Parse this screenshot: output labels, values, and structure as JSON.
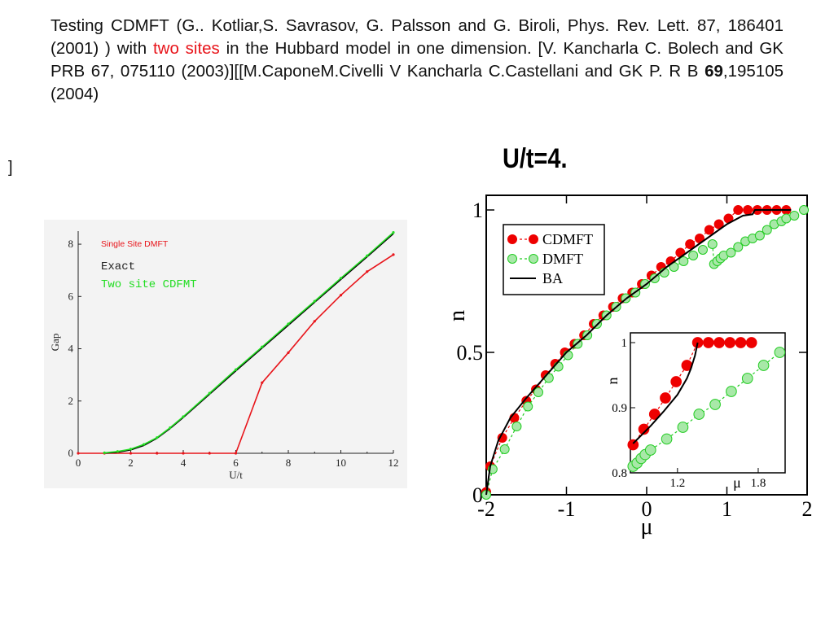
{
  "slide": {
    "text_before": "Testing    CDMFT (G.. Kotliar,S. Savrasov, G. Palsson and G. Biroli, Phys. Rev. Lett. 87, 186401 (2001) )   with ",
    "text_highlight": "two sites",
    "text_after": " in   the Hubbard model in one dimension. [V. Kancharla C. Bolech and GK   PRB 67, 075110 (2003)][[M.CaponeM.Civelli   V Kancharla C.Castellani and GK   P. R B ",
    "text_bold": "69",
    "text_end": ",195105 (2004)",
    "stray_bracket": "]",
    "right_title": "U/t=4.",
    "accent_color": "#e8151b"
  },
  "chart_data": [
    {
      "type": "line",
      "title": "",
      "xlabel": "U/t",
      "ylabel": "Gap",
      "xlim": [
        0,
        12
      ],
      "ylim": [
        0,
        8.5
      ],
      "x_ticks": [
        "0",
        "2",
        "4",
        "6",
        "8",
        "10",
        "12"
      ],
      "y_ticks": [
        "0",
        "2",
        "4",
        "6",
        "8"
      ],
      "legend": [
        "Single Site DMFT",
        "Exact",
        "Two site CDFMT"
      ],
      "legend_position": "top-left",
      "series": [
        {
          "name": "Single Site DMFT",
          "color": "#e8151b",
          "x": [
            0,
            1,
            2,
            3,
            4,
            5,
            6,
            7,
            8,
            9,
            10,
            11,
            12
          ],
          "y": [
            0,
            0,
            0,
            0,
            0,
            0,
            0,
            2.7,
            3.85,
            5.05,
            6.05,
            6.95,
            7.6
          ]
        },
        {
          "name": "Exact",
          "color": "#000000",
          "x": [
            1,
            1.5,
            2,
            2.5,
            3,
            3.5,
            4,
            5,
            6,
            7,
            8,
            9,
            10,
            11,
            12
          ],
          "y": [
            0.005,
            0.04,
            0.13,
            0.3,
            0.58,
            0.95,
            1.37,
            2.26,
            3.15,
            4.03,
            4.9,
            5.78,
            6.65,
            7.52,
            8.4
          ]
        },
        {
          "name": "Two site CDFMT",
          "color": "#22dd22",
          "x": [
            1,
            1.5,
            2,
            2.5,
            3,
            3.5,
            4,
            5,
            6,
            7,
            8,
            9,
            10,
            11,
            12
          ],
          "y": [
            0.02,
            0.07,
            0.16,
            0.34,
            0.6,
            0.98,
            1.4,
            2.3,
            3.2,
            4.07,
            4.95,
            5.82,
            6.7,
            7.56,
            8.45
          ]
        }
      ]
    },
    {
      "type": "line",
      "title": "U/t=4.",
      "xlabel": "μ",
      "ylabel": "n",
      "xlim": [
        -2,
        2
      ],
      "ylim": [
        0,
        1
      ],
      "x_ticks": [
        "-2",
        "-1",
        "0",
        "1",
        "2"
      ],
      "y_ticks": [
        "0",
        "0.5",
        "1"
      ],
      "legend": [
        "CDMFT",
        "DMFT",
        "BA"
      ],
      "legend_position": "top-left",
      "series": [
        {
          "name": "CDMFT",
          "color": "#ee0000",
          "x": [
            -2.0,
            -1.95,
            -1.8,
            -1.65,
            -1.5,
            -1.38,
            -1.26,
            -1.14,
            -1.02,
            -0.9,
            -0.78,
            -0.66,
            -0.54,
            -0.42,
            -0.3,
            -0.18,
            -0.06,
            0.06,
            0.18,
            0.3,
            0.42,
            0.54,
            0.66,
            0.78,
            0.9,
            1.02,
            1.14,
            1.26,
            1.38,
            1.5,
            1.62,
            1.74
          ],
          "y": [
            0.01,
            0.1,
            0.2,
            0.27,
            0.33,
            0.37,
            0.42,
            0.46,
            0.5,
            0.53,
            0.56,
            0.6,
            0.63,
            0.66,
            0.69,
            0.71,
            0.74,
            0.77,
            0.8,
            0.82,
            0.85,
            0.88,
            0.9,
            0.93,
            0.95,
            0.97,
            1.0,
            1.0,
            1.0,
            1.0,
            1.0,
            1.0
          ]
        },
        {
          "name": "DMFT",
          "color": "#22cc22",
          "x": [
            -2.0,
            -1.92,
            -1.77,
            -1.62,
            -1.48,
            -1.35,
            -1.22,
            -1.1,
            -0.98,
            -0.86,
            -0.74,
            -0.62,
            -0.5,
            -0.38,
            -0.26,
            -0.14,
            -0.02,
            0.1,
            0.22,
            0.34,
            0.46,
            0.58,
            0.7,
            0.82,
            0.84,
            0.88,
            0.92,
            0.96,
            1.05,
            1.14,
            1.23,
            1.32,
            1.41,
            1.5,
            1.59,
            1.68,
            1.74,
            1.84,
            1.96
          ],
          "y": [
            0.0,
            0.09,
            0.16,
            0.24,
            0.31,
            0.36,
            0.41,
            0.45,
            0.49,
            0.53,
            0.56,
            0.6,
            0.63,
            0.66,
            0.69,
            0.71,
            0.74,
            0.76,
            0.78,
            0.8,
            0.82,
            0.84,
            0.86,
            0.88,
            0.81,
            0.82,
            0.83,
            0.84,
            0.85,
            0.87,
            0.89,
            0.9,
            0.91,
            0.93,
            0.95,
            0.96,
            0.97,
            0.98,
            1.0
          ]
        },
        {
          "name": "BA",
          "color": "#000000",
          "x": [
            -2.0,
            -1.95,
            -1.85,
            -1.7,
            -1.5,
            -1.25,
            -1.0,
            -0.75,
            -0.5,
            -0.25,
            0.0,
            0.25,
            0.5,
            0.75,
            1.0,
            1.2,
            1.32,
            1.35,
            1.4,
            1.6,
            1.8
          ],
          "y": [
            0.0,
            0.1,
            0.19,
            0.27,
            0.34,
            0.42,
            0.5,
            0.56,
            0.63,
            0.69,
            0.74,
            0.8,
            0.85,
            0.9,
            0.95,
            0.98,
            0.985,
            1.0,
            1.0,
            1.0,
            1.0
          ]
        }
      ],
      "inset": {
        "xlabel": "μ",
        "ylabel": "n",
        "xlim": [
          0.85,
          2.0
        ],
        "ylim": [
          0.8,
          1.01
        ],
        "x_ticks": [
          "1.2",
          "1.8"
        ],
        "y_ticks": [
          "0.8",
          "0.9",
          "1"
        ],
        "series": [
          {
            "name": "CDMFT",
            "color": "#ee0000",
            "x": [
              0.87,
              0.95,
              1.03,
              1.11,
              1.19,
              1.27,
              1.35,
              1.43,
              1.51,
              1.59,
              1.67,
              1.75
            ],
            "y": [
              0.843,
              0.867,
              0.89,
              0.915,
              0.94,
              0.965,
              1.0,
              1.0,
              1.0,
              1.0,
              1.0,
              1.0
            ]
          },
          {
            "name": "DMFT",
            "color": "#22cc22",
            "x": [
              0.87,
              0.9,
              0.93,
              0.96,
              1.0,
              1.12,
              1.24,
              1.36,
              1.48,
              1.6,
              1.72,
              1.84,
              1.96
            ],
            "y": [
              0.81,
              0.815,
              0.822,
              0.828,
              0.835,
              0.852,
              0.87,
              0.89,
              0.905,
              0.925,
              0.945,
              0.965,
              0.985
            ]
          },
          {
            "name": "BA",
            "color": "#000000",
            "x": [
              0.87,
              1.0,
              1.1,
              1.2,
              1.27,
              1.3,
              1.33,
              1.35
            ],
            "y": [
              0.845,
              0.872,
              0.895,
              0.92,
              0.945,
              0.96,
              0.98,
              1.0
            ]
          }
        ]
      }
    }
  ]
}
